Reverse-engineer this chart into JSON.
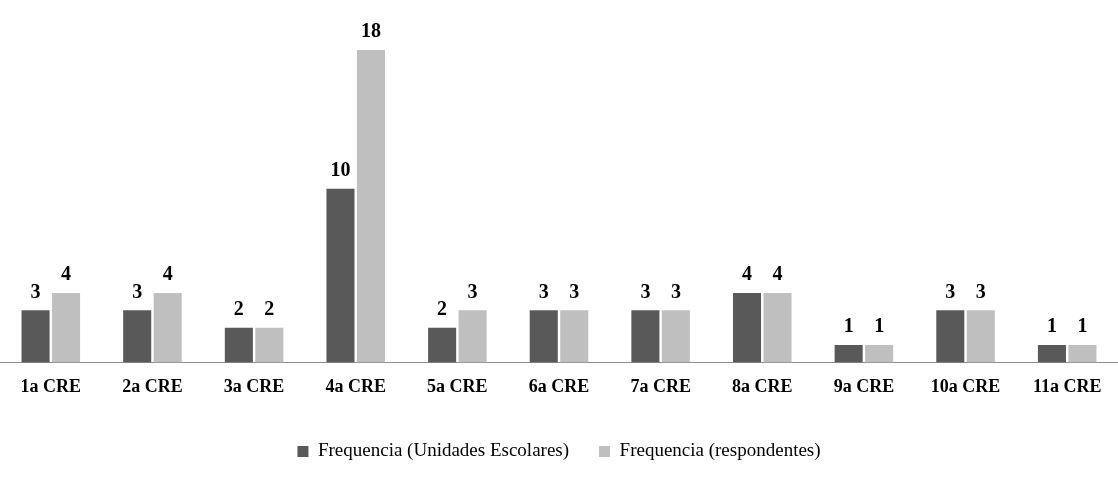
{
  "chart_data": {
    "type": "bar",
    "categories": [
      "1a CRE",
      "2a CRE",
      "3a CRE",
      "4a CRE",
      "5a CRE",
      "6a CRE",
      "7a CRE",
      "8a CRE",
      "9a CRE",
      "10a CRE",
      "11a CRE"
    ],
    "series": [
      {
        "name": "Frequencia (Unidades Escolares)",
        "color": "#595959",
        "values": [
          3,
          3,
          2,
          10,
          2,
          3,
          3,
          4,
          1,
          3,
          1
        ]
      },
      {
        "name": "Frequencia (respondentes)",
        "color": "#bfbfbf",
        "values": [
          4,
          4,
          2,
          18,
          3,
          3,
          3,
          4,
          1,
          3,
          1
        ]
      }
    ],
    "data_labels": true,
    "grid": false,
    "legend": "bottom"
  }
}
